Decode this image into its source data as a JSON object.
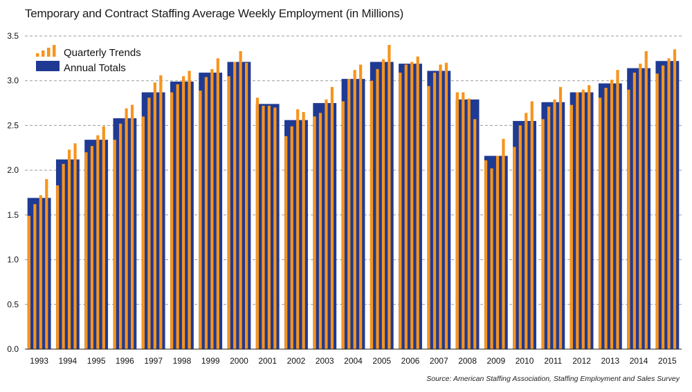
{
  "title": "Temporary and Contract Staffing Average Weekly Employment (in Millions)",
  "source": "Source: American Staffing Association, Staffing Employment and Sales Survey",
  "colors": {
    "annual": "#1f3a93",
    "quarterly": "#f7941d",
    "grid": "#9a9a9a"
  },
  "chart_data": {
    "type": "bar",
    "title": "Temporary and Contract Staffing Average Weekly Employment (in Millions)",
    "xlabel": "",
    "ylabel": "",
    "ylim": [
      0,
      3.5
    ],
    "yticks": [
      "0.0",
      "0.5",
      "1.0",
      "1.5",
      "2.0",
      "2.5",
      "3.0",
      "3.5"
    ],
    "grid": true,
    "legend_position": "top-left",
    "categories": [
      "1993",
      "1994",
      "1995",
      "1996",
      "1997",
      "1998",
      "1999",
      "2000",
      "2001",
      "2002",
      "2003",
      "2004",
      "2005",
      "2006",
      "2007",
      "2008",
      "2009",
      "2010",
      "2011",
      "2012",
      "2013",
      "2014",
      "2015"
    ],
    "series": [
      {
        "name": "Annual Totals",
        "values": [
          1.69,
          2.12,
          2.34,
          2.58,
          2.87,
          2.99,
          3.09,
          3.21,
          2.74,
          2.56,
          2.75,
          3.02,
          3.21,
          3.19,
          3.11,
          2.79,
          2.16,
          2.55,
          2.76,
          2.87,
          2.97,
          3.14,
          3.22
        ]
      },
      {
        "name": "Quarterly Trends",
        "values": [
          [
            1.49,
            1.62,
            1.72,
            1.9
          ],
          [
            1.83,
            2.07,
            2.23,
            2.3
          ],
          [
            2.2,
            2.27,
            2.39,
            2.49
          ],
          [
            2.34,
            2.52,
            2.69,
            2.73
          ],
          [
            2.6,
            2.81,
            2.98,
            3.06
          ],
          [
            2.87,
            2.96,
            3.05,
            3.11
          ],
          [
            2.89,
            3.04,
            3.13,
            3.25
          ],
          [
            3.05,
            3.21,
            3.33,
            3.2
          ],
          [
            2.81,
            2.72,
            2.72,
            2.7
          ],
          [
            2.38,
            2.49,
            2.68,
            2.65
          ],
          [
            2.6,
            2.64,
            2.79,
            2.93
          ],
          [
            2.77,
            3.02,
            3.12,
            3.18
          ],
          [
            3.0,
            3.13,
            3.24,
            3.4
          ],
          [
            3.09,
            3.18,
            3.21,
            3.27
          ],
          [
            2.94,
            3.09,
            3.18,
            3.2
          ],
          [
            2.87,
            2.87,
            2.8,
            2.57
          ],
          [
            2.11,
            2.02,
            2.16,
            2.35
          ],
          [
            2.26,
            2.5,
            2.64,
            2.77
          ],
          [
            2.57,
            2.71,
            2.79,
            2.93
          ],
          [
            2.73,
            2.87,
            2.9,
            2.95
          ],
          [
            2.81,
            2.92,
            3.01,
            3.12
          ],
          [
            2.9,
            3.09,
            3.19,
            3.33
          ],
          [
            3.08,
            3.17,
            3.25,
            3.35
          ]
        ]
      }
    ]
  }
}
